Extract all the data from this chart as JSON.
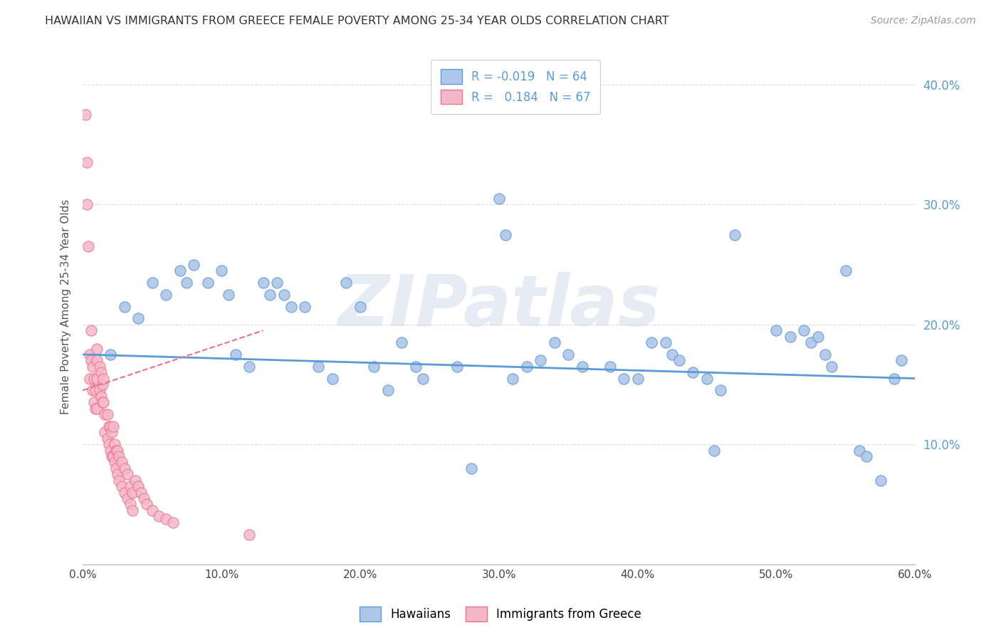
{
  "title": "HAWAIIAN VS IMMIGRANTS FROM GREECE FEMALE POVERTY AMONG 25-34 YEAR OLDS CORRELATION CHART",
  "source": "Source: ZipAtlas.com",
  "ylabel": "Female Poverty Among 25-34 Year Olds",
  "watermark": "ZIPatlas",
  "blue_scatter": [
    [
      0.02,
      0.175
    ],
    [
      0.03,
      0.215
    ],
    [
      0.04,
      0.205
    ],
    [
      0.05,
      0.235
    ],
    [
      0.06,
      0.225
    ],
    [
      0.07,
      0.245
    ],
    [
      0.075,
      0.235
    ],
    [
      0.08,
      0.25
    ],
    [
      0.09,
      0.235
    ],
    [
      0.1,
      0.245
    ],
    [
      0.105,
      0.225
    ],
    [
      0.11,
      0.175
    ],
    [
      0.12,
      0.165
    ],
    [
      0.13,
      0.235
    ],
    [
      0.135,
      0.225
    ],
    [
      0.14,
      0.235
    ],
    [
      0.145,
      0.225
    ],
    [
      0.15,
      0.215
    ],
    [
      0.16,
      0.215
    ],
    [
      0.17,
      0.165
    ],
    [
      0.18,
      0.155
    ],
    [
      0.19,
      0.235
    ],
    [
      0.2,
      0.215
    ],
    [
      0.21,
      0.165
    ],
    [
      0.22,
      0.145
    ],
    [
      0.23,
      0.185
    ],
    [
      0.24,
      0.165
    ],
    [
      0.245,
      0.155
    ],
    [
      0.27,
      0.165
    ],
    [
      0.28,
      0.08
    ],
    [
      0.3,
      0.305
    ],
    [
      0.305,
      0.275
    ],
    [
      0.31,
      0.155
    ],
    [
      0.32,
      0.165
    ],
    [
      0.33,
      0.17
    ],
    [
      0.34,
      0.185
    ],
    [
      0.35,
      0.175
    ],
    [
      0.36,
      0.165
    ],
    [
      0.38,
      0.165
    ],
    [
      0.39,
      0.155
    ],
    [
      0.4,
      0.155
    ],
    [
      0.41,
      0.185
    ],
    [
      0.42,
      0.185
    ],
    [
      0.425,
      0.175
    ],
    [
      0.43,
      0.17
    ],
    [
      0.44,
      0.16
    ],
    [
      0.45,
      0.155
    ],
    [
      0.455,
      0.095
    ],
    [
      0.46,
      0.145
    ],
    [
      0.47,
      0.275
    ],
    [
      0.5,
      0.195
    ],
    [
      0.51,
      0.19
    ],
    [
      0.52,
      0.195
    ],
    [
      0.525,
      0.185
    ],
    [
      0.53,
      0.19
    ],
    [
      0.535,
      0.175
    ],
    [
      0.54,
      0.165
    ],
    [
      0.55,
      0.245
    ],
    [
      0.56,
      0.095
    ],
    [
      0.565,
      0.09
    ],
    [
      0.575,
      0.07
    ],
    [
      0.585,
      0.155
    ],
    [
      0.59,
      0.17
    ]
  ],
  "pink_scatter": [
    [
      0.002,
      0.375
    ],
    [
      0.003,
      0.335
    ],
    [
      0.003,
      0.3
    ],
    [
      0.004,
      0.265
    ],
    [
      0.005,
      0.175
    ],
    [
      0.005,
      0.155
    ],
    [
      0.006,
      0.195
    ],
    [
      0.006,
      0.17
    ],
    [
      0.007,
      0.165
    ],
    [
      0.007,
      0.145
    ],
    [
      0.008,
      0.155
    ],
    [
      0.008,
      0.135
    ],
    [
      0.009,
      0.145
    ],
    [
      0.009,
      0.13
    ],
    [
      0.01,
      0.155
    ],
    [
      0.01,
      0.13
    ],
    [
      0.01,
      0.17
    ],
    [
      0.01,
      0.18
    ],
    [
      0.012,
      0.165
    ],
    [
      0.012,
      0.145
    ],
    [
      0.013,
      0.16
    ],
    [
      0.013,
      0.14
    ],
    [
      0.014,
      0.15
    ],
    [
      0.014,
      0.135
    ],
    [
      0.015,
      0.155
    ],
    [
      0.015,
      0.135
    ],
    [
      0.016,
      0.125
    ],
    [
      0.016,
      0.11
    ],
    [
      0.018,
      0.125
    ],
    [
      0.018,
      0.105
    ],
    [
      0.019,
      0.115
    ],
    [
      0.019,
      0.1
    ],
    [
      0.02,
      0.115
    ],
    [
      0.02,
      0.095
    ],
    [
      0.021,
      0.11
    ],
    [
      0.021,
      0.09
    ],
    [
      0.022,
      0.115
    ],
    [
      0.022,
      0.09
    ],
    [
      0.023,
      0.1
    ],
    [
      0.023,
      0.085
    ],
    [
      0.024,
      0.095
    ],
    [
      0.024,
      0.08
    ],
    [
      0.025,
      0.095
    ],
    [
      0.025,
      0.075
    ],
    [
      0.026,
      0.09
    ],
    [
      0.026,
      0.07
    ],
    [
      0.028,
      0.085
    ],
    [
      0.028,
      0.065
    ],
    [
      0.03,
      0.08
    ],
    [
      0.03,
      0.06
    ],
    [
      0.032,
      0.075
    ],
    [
      0.032,
      0.055
    ],
    [
      0.034,
      0.065
    ],
    [
      0.034,
      0.05
    ],
    [
      0.036,
      0.06
    ],
    [
      0.036,
      0.045
    ],
    [
      0.038,
      0.07
    ],
    [
      0.04,
      0.065
    ],
    [
      0.042,
      0.06
    ],
    [
      0.044,
      0.055
    ],
    [
      0.046,
      0.05
    ],
    [
      0.05,
      0.045
    ],
    [
      0.055,
      0.04
    ],
    [
      0.06,
      0.038
    ],
    [
      0.065,
      0.035
    ],
    [
      0.12,
      0.025
    ]
  ],
  "blue_line_x": [
    0.0,
    0.6
  ],
  "blue_line_y": [
    0.175,
    0.155
  ],
  "pink_line_x": [
    0.0,
    0.13
  ],
  "pink_line_y": [
    0.145,
    0.195
  ],
  "xlim": [
    0.0,
    0.6
  ],
  "ylim": [
    0.0,
    0.43
  ],
  "yticks": [
    0.1,
    0.2,
    0.3,
    0.4
  ],
  "ytick_labels": [
    "10.0%",
    "20.0%",
    "30.0%",
    "40.0%"
  ],
  "xticks": [
    0.0,
    0.1,
    0.2,
    0.3,
    0.4,
    0.5,
    0.6
  ],
  "xtick_labels": [
    "0.0%",
    "10.0%",
    "20.0%",
    "30.0%",
    "40.0%",
    "50.0%",
    "60.0%"
  ],
  "blue_color": "#5b9bd5",
  "pink_color": "#e8728a",
  "blue_fill": "#aec6e8",
  "pink_fill": "#f5b8cb",
  "background_color": "#ffffff",
  "grid_color": "#cccccc"
}
